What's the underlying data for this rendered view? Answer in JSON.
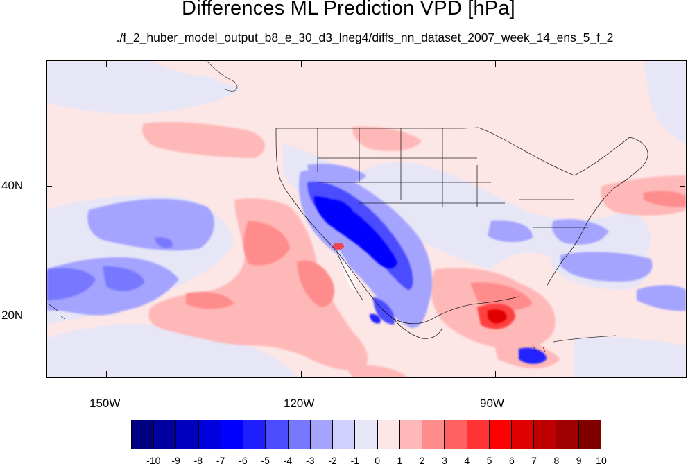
{
  "title": "Differences ML Prediction VPD [hPa]",
  "subtitle": "./f_2_huber_model_output_b8_e_30_d3_lneg4/diffs_nn_dataset_2007_week_14_ens_5_f_2",
  "lat_labels": [
    "40N",
    "20N"
  ],
  "lon_labels": [
    "150W",
    "120W",
    "90W"
  ],
  "colorbar": {
    "labels": [
      "-10",
      "-9",
      "-8",
      "-7",
      "-6",
      "-5",
      "-4",
      "-3",
      "-2",
      "-1",
      "0",
      "1",
      "2",
      "3",
      "4",
      "5",
      "6",
      "7",
      "8",
      "9",
      "10"
    ],
    "colors": [
      "#000080",
      "#00009f",
      "#0000bf",
      "#0000df",
      "#0000ff",
      "#2020ff",
      "#4c4cff",
      "#7878ff",
      "#a4a4ff",
      "#d0d0ff",
      "#e6e6f7",
      "#fde6e6",
      "#ffb8b8",
      "#ff8c8c",
      "#ff6060",
      "#ff3434",
      "#ff0000",
      "#df0000",
      "#bf0000",
      "#9f0000",
      "#800000"
    ]
  },
  "map_extent": {
    "lon_min": -160,
    "lon_max": -62,
    "lat_min": 10,
    "lat_max": 59
  }
}
